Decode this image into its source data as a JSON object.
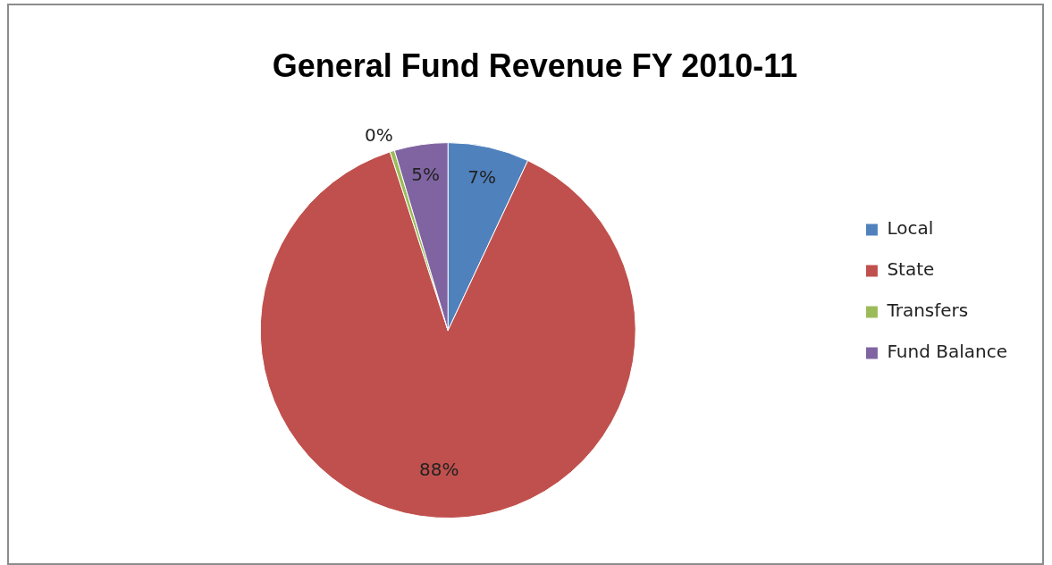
{
  "chart_data": {
    "type": "pie",
    "title": "General Fund Revenue FY 2010-11",
    "categories": [
      "Local",
      "State",
      "Transfers",
      "Fund Balance"
    ],
    "values": [
      7,
      88,
      0.4,
      4.6
    ],
    "value_labels": [
      "7%",
      "88%",
      "0%",
      "5%"
    ],
    "colors": [
      "#4f81bd",
      "#c0504d",
      "#9bbb59",
      "#8064a2"
    ],
    "legend": "right"
  }
}
